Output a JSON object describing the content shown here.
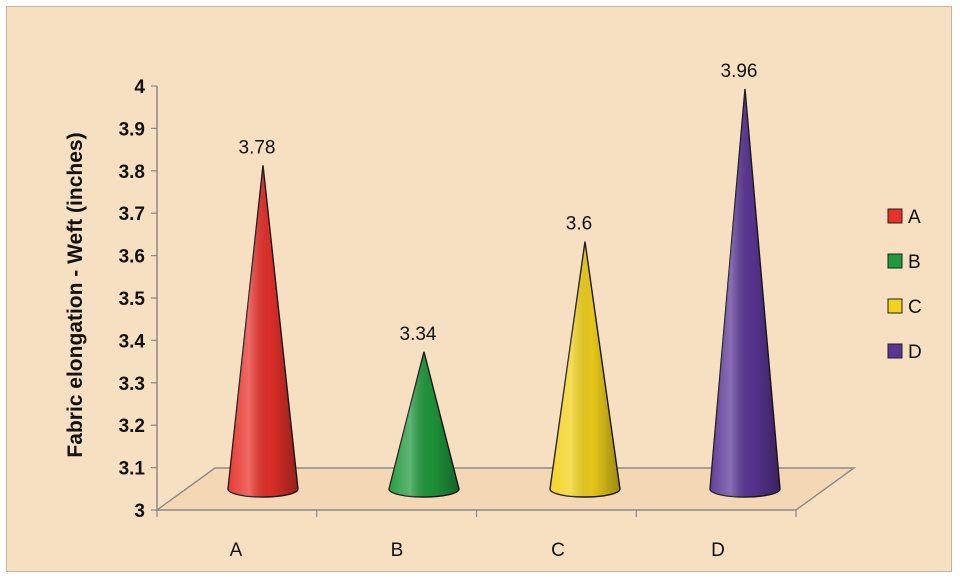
{
  "chart_data": {
    "type": "bar",
    "bar_shape": "cone",
    "ylabel": "Fabric elongation - Weft (inches)",
    "ylim": [
      3,
      4
    ],
    "yticks": [
      "3",
      "3.1",
      "3.2",
      "3.3",
      "3.4",
      "3.5",
      "3.6",
      "3.7",
      "3.8",
      "3.9",
      "4"
    ],
    "categories": [
      "A",
      "B",
      "C",
      "D"
    ],
    "values": [
      3.78,
      3.34,
      3.6,
      3.96
    ],
    "data_labels": [
      "3.78",
      "3.34",
      "3.6",
      "3.96"
    ],
    "colors": [
      "#e8302a",
      "#1f9a3c",
      "#f2d21a",
      "#5b3596"
    ],
    "legend": [
      "A",
      "B",
      "C",
      "D"
    ],
    "legend_position": "right",
    "grid": false
  }
}
